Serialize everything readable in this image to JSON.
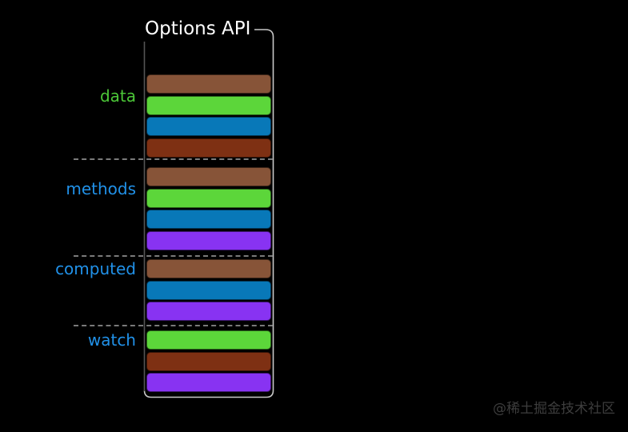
{
  "title": "Options API",
  "watermark": "@稀土掘金技术社区",
  "colors": {
    "background": "#000000",
    "frame_light": "#c8c8c8",
    "frame_dark": "#555555",
    "separator": "#7a7a7a",
    "title": "#ffffff",
    "watermark": "#3d3d3d",
    "bar_palette": {
      "sienna": "#875438",
      "green": "#5cd63a",
      "blue": "#0878b8",
      "darkred": "#7e3013",
      "purple": "#8833f2"
    }
  },
  "sections": [
    {
      "label": "data",
      "label_color": "#4cc838",
      "bars": [
        "sienna",
        "green",
        "blue",
        "darkred"
      ]
    },
    {
      "label": "methods",
      "label_color": "#2191e8",
      "bars": [
        "sienna",
        "green",
        "blue",
        "purple"
      ]
    },
    {
      "label": "computed",
      "label_color": "#2191e8",
      "bars": [
        "sienna",
        "blue",
        "purple"
      ]
    },
    {
      "label": "watch",
      "label_color": "#2191e8",
      "bars": [
        "green",
        "darkred",
        "purple"
      ]
    }
  ]
}
